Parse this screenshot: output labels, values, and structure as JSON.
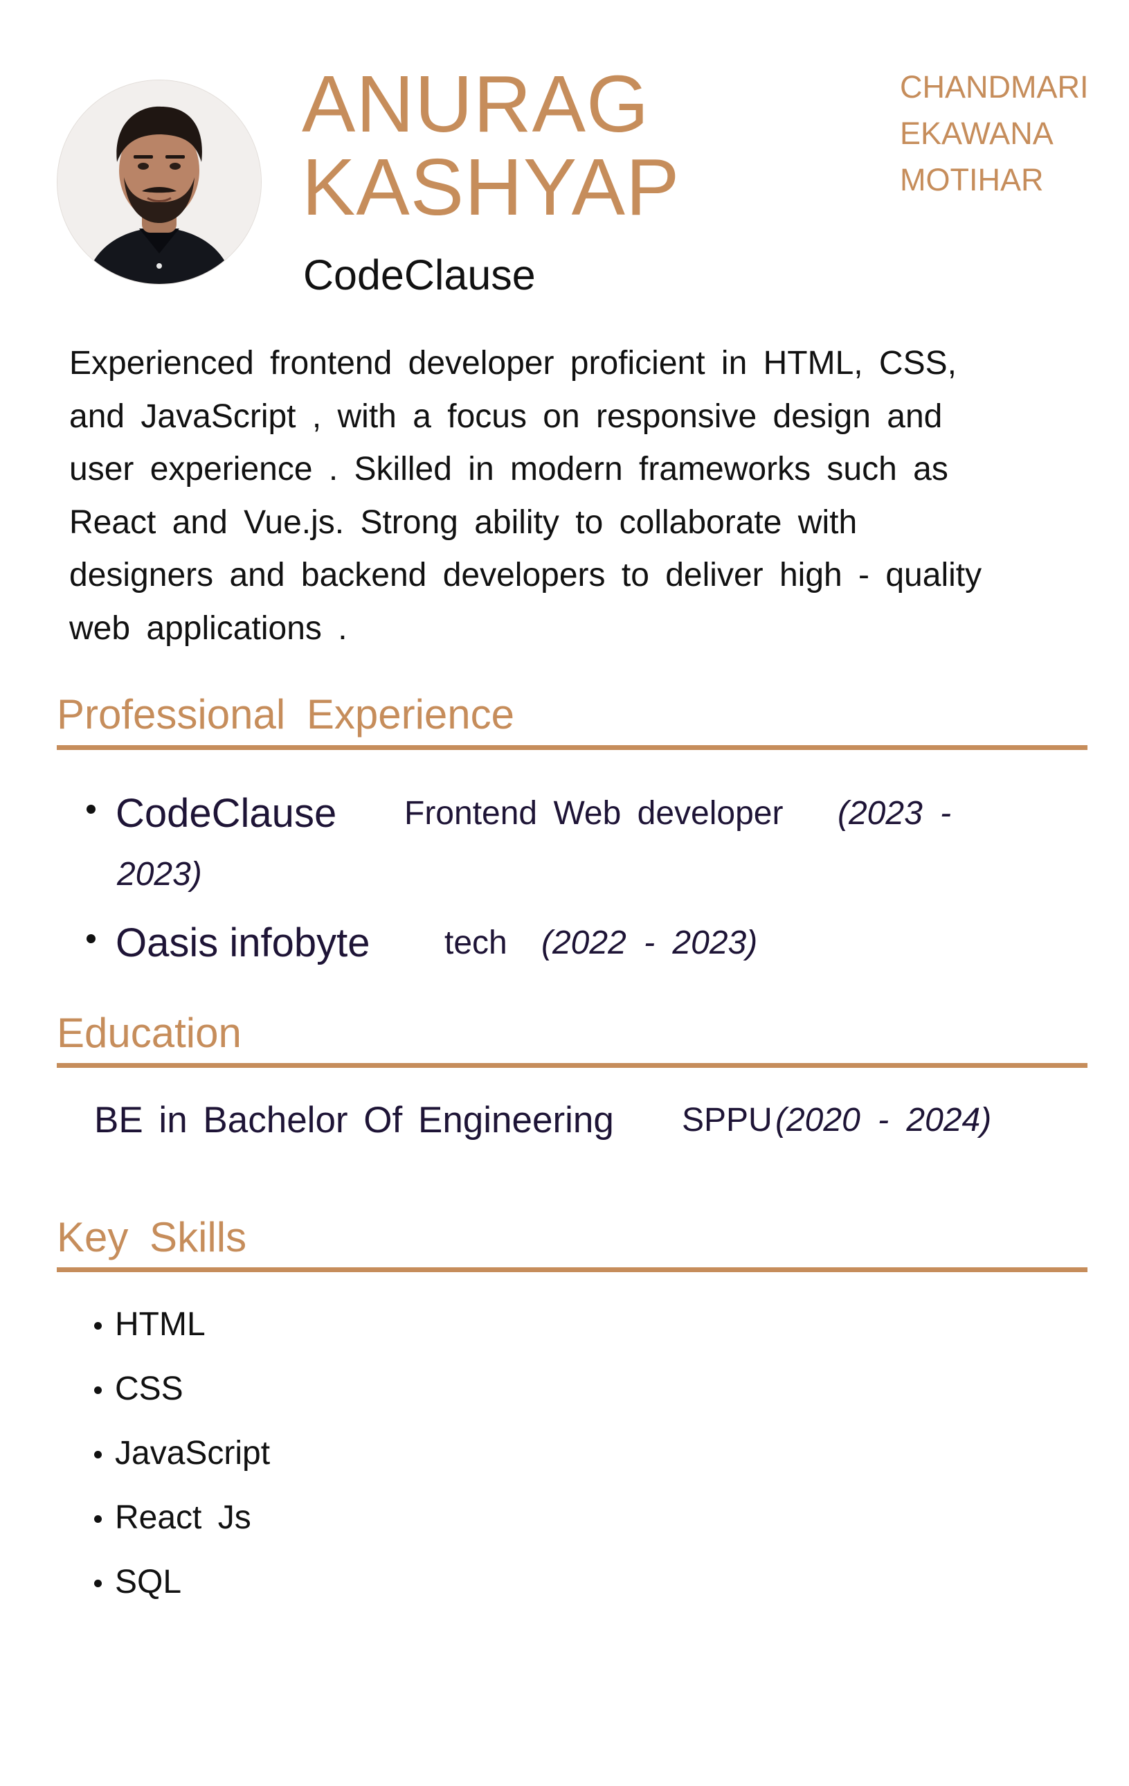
{
  "header": {
    "name_line_1": "ANURAG",
    "name_line_2": "KASHYAP",
    "company": "CodeClause",
    "address": [
      "CHANDMARI",
      "EKAWANA",
      "MOTIHAR"
    ]
  },
  "summary": {
    "lines": [
      "Experienced  frontend  developer  proficient  in HTML, CSS,",
      "and JavaScript , with a focus on responsive design and",
      "user experience . Skilled in modern frameworks such as",
      "React and Vue.js. Strong ability to collaborate with",
      "designers and backend developers to deliver high - quality",
      "web applications ."
    ]
  },
  "sections": {
    "experience_title": "Professional  Experience",
    "education_title": "Education",
    "skills_title": "Key Skills"
  },
  "experience": [
    {
      "company": "CodeClause",
      "role": "Frontend Web developer",
      "period_start": "(2023 -",
      "period_end": "2023)"
    },
    {
      "company": "Oasis infobyte",
      "role": "tech",
      "period": "(2022 - 2023)"
    }
  ],
  "education": {
    "degree": "BE in Bachelor Of Engineering",
    "school": "SPPU",
    "period": "(2020 - 2024)"
  },
  "skills": [
    "HTML",
    "CSS",
    "JavaScript",
    "React Js",
    "SQL"
  ],
  "colors": {
    "accent": "#c68d5b",
    "text": "#111111",
    "text_dark_navy": "#1e1436"
  },
  "icons": {
    "avatar": "profile-photo"
  }
}
